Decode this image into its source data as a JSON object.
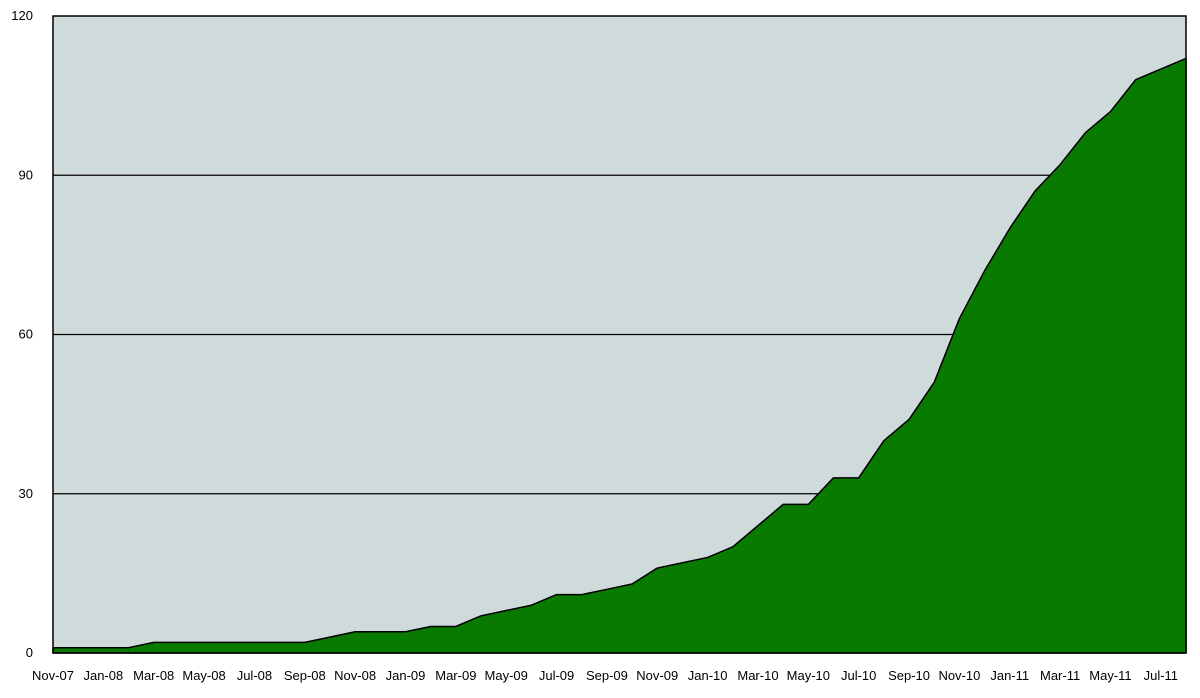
{
  "chart_data": {
    "type": "area",
    "title": "",
    "xlabel": "",
    "ylabel": "",
    "ylim": [
      0,
      120
    ],
    "yticks": [
      0,
      30,
      60,
      90,
      120
    ],
    "grid": true,
    "legend": "none",
    "colors": {
      "fill": "#087a00",
      "plot_background": "#cfdada",
      "line": "#000000",
      "gridline": "#000000"
    },
    "x_tick_labels": [
      "Nov-07",
      "Jan-08",
      "Mar-08",
      "May-08",
      "Jul-08",
      "Sep-08",
      "Nov-08",
      "Jan-09",
      "Mar-09",
      "May-09",
      "Jul-09",
      "Sep-09",
      "Nov-09",
      "Jan-10",
      "Mar-10",
      "May-10",
      "Jul-10",
      "Sep-10",
      "Nov-10",
      "Jan-11",
      "Mar-11",
      "May-11",
      "Jul-11"
    ],
    "x": [
      "Nov-07",
      "Dec-07",
      "Jan-08",
      "Feb-08",
      "Mar-08",
      "Apr-08",
      "May-08",
      "Jun-08",
      "Jul-08",
      "Aug-08",
      "Sep-08",
      "Oct-08",
      "Nov-08",
      "Dec-08",
      "Jan-09",
      "Feb-09",
      "Mar-09",
      "Apr-09",
      "May-09",
      "Jun-09",
      "Jul-09",
      "Aug-09",
      "Sep-09",
      "Oct-09",
      "Nov-09",
      "Dec-09",
      "Jan-10",
      "Feb-10",
      "Mar-10",
      "Apr-10",
      "May-10",
      "Jun-10",
      "Jul-10",
      "Aug-10",
      "Sep-10",
      "Oct-10",
      "Nov-10",
      "Dec-10",
      "Jan-11",
      "Feb-11",
      "Mar-11",
      "Apr-11",
      "May-11",
      "Jun-11",
      "Jul-11",
      "Aug-11"
    ],
    "series": [
      {
        "values": [
          1,
          1,
          1,
          1,
          2,
          2,
          2,
          2,
          2,
          2,
          2,
          3,
          4,
          4,
          4,
          5,
          5,
          7,
          8,
          9,
          11,
          11,
          12,
          13,
          16,
          17,
          18,
          20,
          24,
          28,
          28,
          33,
          33,
          40,
          44,
          51,
          63,
          72,
          80,
          87,
          92,
          98,
          102,
          108,
          110,
          112
        ]
      }
    ]
  }
}
